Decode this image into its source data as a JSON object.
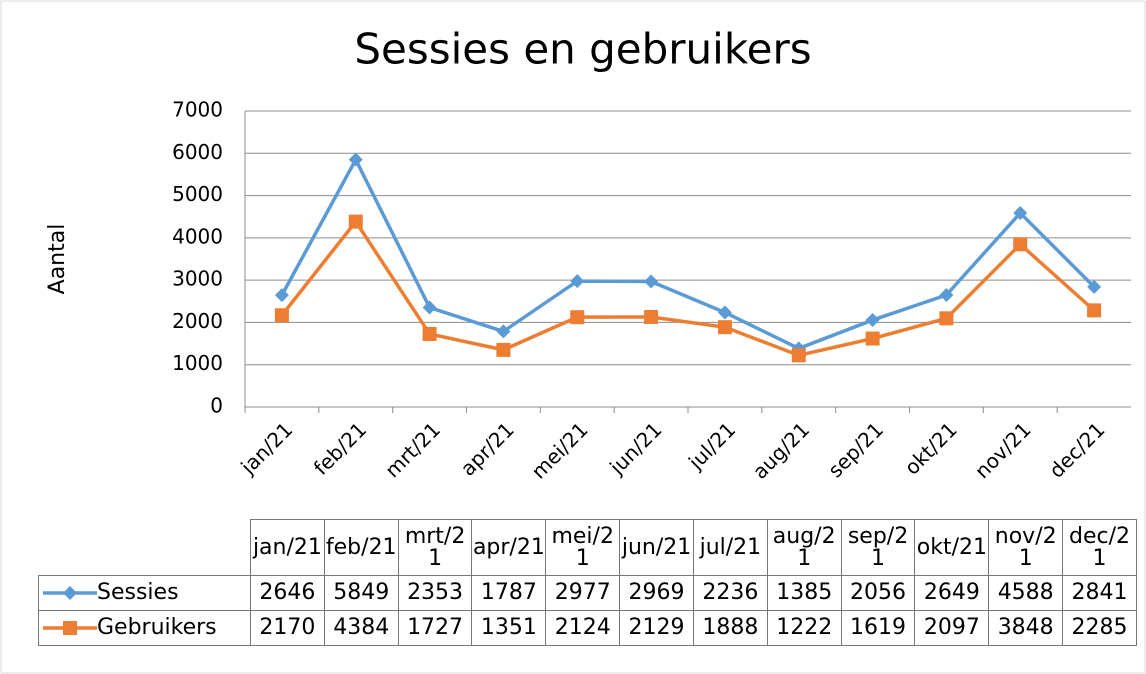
{
  "chart_data": {
    "type": "line",
    "title": "Sessies en gebruikers",
    "ylabel": "Aantal",
    "categories": [
      "jan/21",
      "feb/21",
      "mrt/21",
      "apr/21",
      "mei/21",
      "jun/21",
      "jul/21",
      "aug/21",
      "sep/21",
      "okt/21",
      "nov/21",
      "dec/21"
    ],
    "series": [
      {
        "name": "Sessies",
        "color": "#5b9bd5",
        "marker": "diamond",
        "values": [
          2646,
          5849,
          2353,
          1787,
          2977,
          2969,
          2236,
          1385,
          2056,
          2649,
          4588,
          2841
        ]
      },
      {
        "name": "Gebruikers",
        "color": "#ed7d31",
        "marker": "square",
        "values": [
          2170,
          4384,
          1727,
          1351,
          2124,
          2129,
          1888,
          1222,
          1619,
          2097,
          3848,
          2285
        ]
      }
    ],
    "ylim": [
      0,
      7000
    ],
    "yticks": [
      0,
      1000,
      2000,
      3000,
      4000,
      5000,
      6000,
      7000
    ],
    "grid": true,
    "data_table": true
  }
}
